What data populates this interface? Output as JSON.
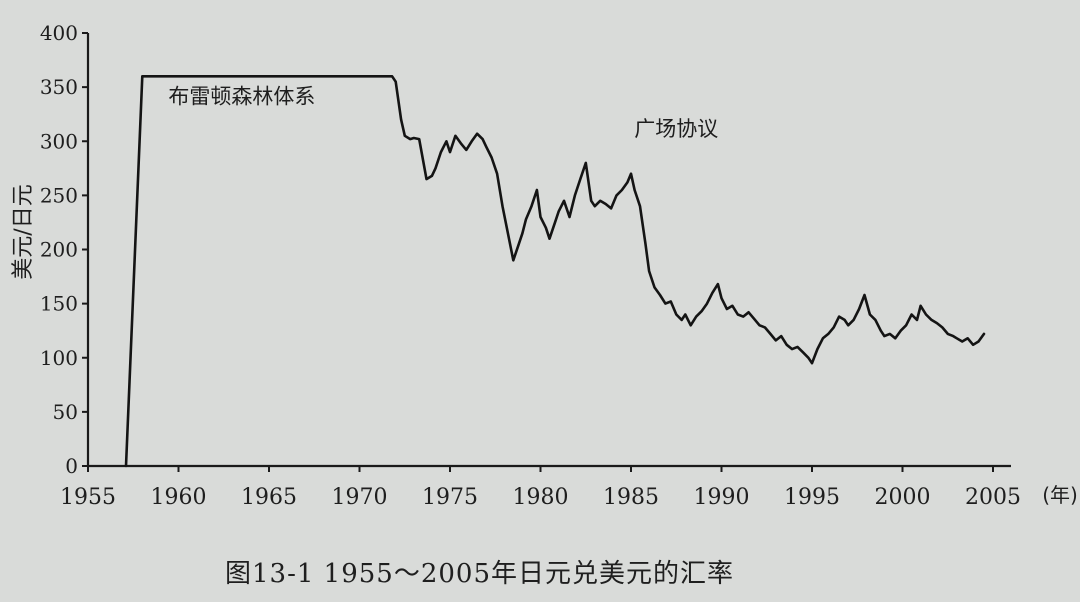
{
  "chart_data": {
    "type": "line",
    "title": "",
    "caption": "图13-1   1955～2005年日元兑美元的汇率",
    "ylabel": "美元/日元",
    "xlabel": "(年)",
    "xlim": [
      1955,
      2005
    ],
    "ylim": [
      0,
      400
    ],
    "x_ticks": [
      1955,
      1960,
      1965,
      1970,
      1975,
      1980,
      1985,
      1990,
      1995,
      2000,
      2005
    ],
    "y_ticks": [
      0,
      50,
      100,
      150,
      200,
      250,
      300,
      350,
      400
    ],
    "annotations": [
      {
        "text": "布雷顿森林体系",
        "x": 1963.5,
        "y": 335
      },
      {
        "text": "广场协议",
        "x": 1987.5,
        "y": 305
      }
    ],
    "series": [
      {
        "name": "日元兑美元汇率",
        "x": [
          1957.1,
          1958.0,
          1960,
          1965,
          1970,
          1971.8,
          1972.0,
          1972.3,
          1972.5,
          1972.8,
          1973.0,
          1973.3,
          1973.7,
          1974.0,
          1974.2,
          1974.5,
          1974.8,
          1975.0,
          1975.3,
          1975.6,
          1975.9,
          1976.2,
          1976.5,
          1976.8,
          1977.0,
          1977.3,
          1977.6,
          1977.9,
          1978.2,
          1978.5,
          1978.8,
          1979.0,
          1979.2,
          1979.5,
          1979.8,
          1980.0,
          1980.3,
          1980.5,
          1980.8,
          1981.0,
          1981.3,
          1981.6,
          1981.9,
          1982.2,
          1982.5,
          1982.8,
          1983.0,
          1983.3,
          1983.6,
          1983.9,
          1984.2,
          1984.5,
          1984.8,
          1985.0,
          1985.2,
          1985.5,
          1985.8,
          1986.0,
          1986.3,
          1986.6,
          1986.9,
          1987.2,
          1987.5,
          1987.8,
          1988.0,
          1988.3,
          1988.6,
          1988.9,
          1989.2,
          1989.5,
          1989.8,
          1990.0,
          1990.3,
          1990.6,
          1990.9,
          1991.2,
          1991.5,
          1991.8,
          1992.1,
          1992.4,
          1992.7,
          1993.0,
          1993.3,
          1993.6,
          1993.9,
          1994.2,
          1994.5,
          1994.8,
          1995.0,
          1995.3,
          1995.6,
          1995.9,
          1996.2,
          1996.5,
          1996.8,
          1997.0,
          1997.3,
          1997.6,
          1997.9,
          1998.2,
          1998.5,
          1998.8,
          1999.0,
          1999.3,
          1999.6,
          1999.9,
          2000.2,
          2000.5,
          2000.8,
          2001.0,
          2001.3,
          2001.6,
          2001.9,
          2002.2,
          2002.5,
          2002.8,
          2003.0,
          2003.3,
          2003.6,
          2003.9,
          2004.2,
          2004.5
        ],
        "values": [
          0,
          360,
          360,
          360,
          360,
          360,
          355,
          320,
          305,
          302,
          303,
          302,
          265,
          268,
          275,
          290,
          300,
          290,
          305,
          298,
          292,
          300,
          307,
          302,
          295,
          285,
          270,
          240,
          215,
          190,
          205,
          215,
          228,
          240,
          255,
          230,
          220,
          210,
          225,
          235,
          245,
          230,
          250,
          265,
          280,
          245,
          240,
          245,
          242,
          238,
          250,
          255,
          262,
          270,
          255,
          240,
          205,
          180,
          165,
          158,
          150,
          152,
          140,
          135,
          140,
          130,
          138,
          143,
          150,
          160,
          168,
          155,
          145,
          148,
          140,
          138,
          142,
          136,
          130,
          128,
          122,
          116,
          120,
          112,
          108,
          110,
          105,
          100,
          95,
          108,
          118,
          122,
          128,
          138,
          135,
          130,
          135,
          145,
          158,
          140,
          135,
          125,
          120,
          122,
          118,
          125,
          130,
          140,
          135,
          148,
          140,
          135,
          132,
          128,
          122,
          120,
          118,
          115,
          118,
          112,
          115,
          122
        ]
      }
    ]
  }
}
